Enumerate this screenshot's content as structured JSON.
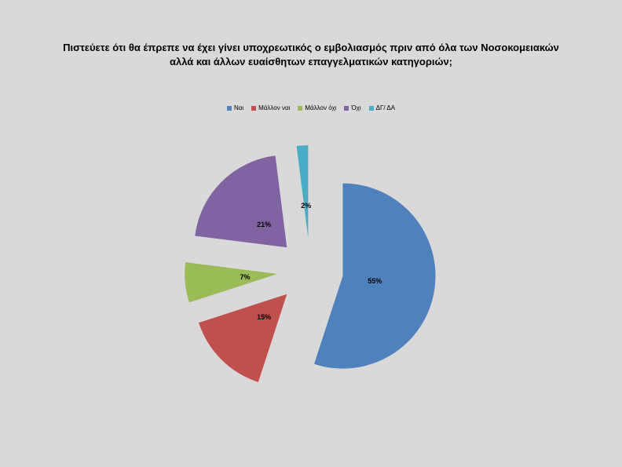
{
  "chart_data": {
    "type": "pie",
    "title_lines": [
      "Πιστεύετε ότι θα έπρεπε να έχει γίνει υποχρεωτικός ο εμβολιασμός πριν από όλα των Νοσοκομειακών",
      "αλλά και άλλων ευαίσθητων επαγγελματικών κατηγοριών;"
    ],
    "legend_placement": "top",
    "exploded": true,
    "slices": [
      {
        "label": "Ναι",
        "value": 55,
        "display": "55%",
        "color": "#4f81bd"
      },
      {
        "label": "Μάλλον ναι",
        "value": 15,
        "display": "15%",
        "color": "#c0504d"
      },
      {
        "label": "Μάλλον όχι",
        "value": 7,
        "display": "7%",
        "color": "#9bbb59"
      },
      {
        "label": "Όχι",
        "value": 21,
        "display": "21%",
        "color": "#8064a2"
      },
      {
        "label": "ΔΓ/ ΔΑ",
        "value": 2,
        "display": "2%",
        "color": "#4bacc6"
      }
    ]
  },
  "background": "#d9d9d9"
}
